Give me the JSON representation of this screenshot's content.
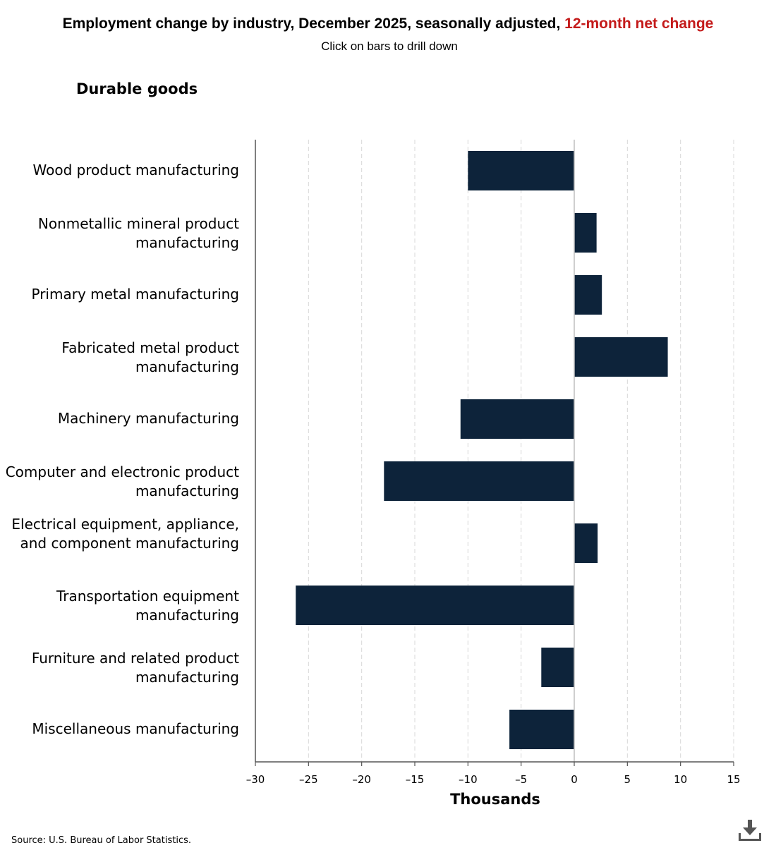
{
  "header": {
    "title_main": "Employment change by industry, December 2025, seasonally adjusted, ",
    "title_highlight": "12-month net change",
    "subtitle": "Click on bars to drill down"
  },
  "footer": {
    "source": "Source: U.S. Bureau of Labor Statistics.",
    "download_icon": "download-icon"
  },
  "colors": {
    "bar": "#0d233a",
    "highlight": "#c41a1a",
    "grid": "#d8d8d8",
    "zero_line": "#bfbfbf",
    "axis": "#555555"
  },
  "chart_data": {
    "type": "bar",
    "orientation": "horizontal",
    "title": "Employment change by industry, December 2025, seasonally adjusted, 12-month net change",
    "subtitle": "Durable goods",
    "xlabel": "Thousands",
    "ylabel": "",
    "xlim": [
      -30,
      15
    ],
    "ticks": [
      "–30",
      "–25",
      "–20",
      "–15",
      "–10",
      "–5",
      "0",
      "5",
      "10",
      "15"
    ],
    "tick_values": [
      -30,
      -25,
      -20,
      -15,
      -10,
      -5,
      0,
      5,
      10,
      15
    ],
    "grid": true,
    "categories": [
      "Wood product manufacturing",
      "Nonmetallic mineral product manufacturing",
      "Primary metal manufacturing",
      "Fabricated metal product manufacturing",
      "Machinery manufacturing",
      "Computer and electronic product manufacturing",
      "Electrical equipment, appliance, and component manufacturing",
      "Transportation equipment manufacturing",
      "Furniture and related product manufacturing",
      "Miscellaneous manufacturing"
    ],
    "values": [
      -10.0,
      2.1,
      2.6,
      8.8,
      -10.7,
      -17.9,
      2.2,
      -26.2,
      -3.1,
      -6.1
    ]
  }
}
